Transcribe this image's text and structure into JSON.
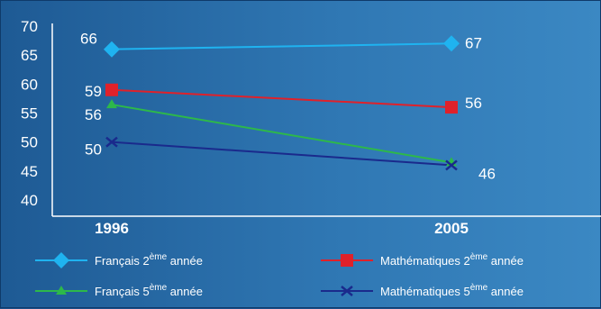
{
  "chart_data": {
    "type": "line",
    "categories": [
      "1996",
      "2005"
    ],
    "ylim": [
      40,
      70
    ],
    "yticks": [
      40,
      45,
      50,
      55,
      60,
      65,
      70
    ],
    "grid": false,
    "legend_position": "bottom",
    "series": [
      {
        "legend": {
          "prefix": "Français 2",
          "sup": "ème",
          "suffix": " année"
        },
        "values": [
          66,
          67
        ],
        "labels": [
          "66",
          "67"
        ],
        "color": "#1fb3f0",
        "marker": "diamond"
      },
      {
        "legend": {
          "prefix": "Mathématiques 2",
          "sup": "ème",
          "suffix": " année"
        },
        "values": [
          59,
          56
        ],
        "labels": [
          "59",
          "56"
        ],
        "color": "#e0212a",
        "marker": "square"
      },
      {
        "legend": {
          "prefix": "Français 5",
          "sup": "ème",
          "suffix": " année"
        },
        "values": [
          56,
          46
        ],
        "labels": [
          "56",
          "46"
        ],
        "color": "#2db84a",
        "marker": "triangle"
      },
      {
        "legend": {
          "prefix": "Mathématiques 5",
          "sup": "ème",
          "suffix": " année"
        },
        "values": [
          50,
          46
        ],
        "labels": [
          "50",
          ""
        ],
        "color": "#1a2a8c",
        "marker": "x"
      }
    ]
  }
}
